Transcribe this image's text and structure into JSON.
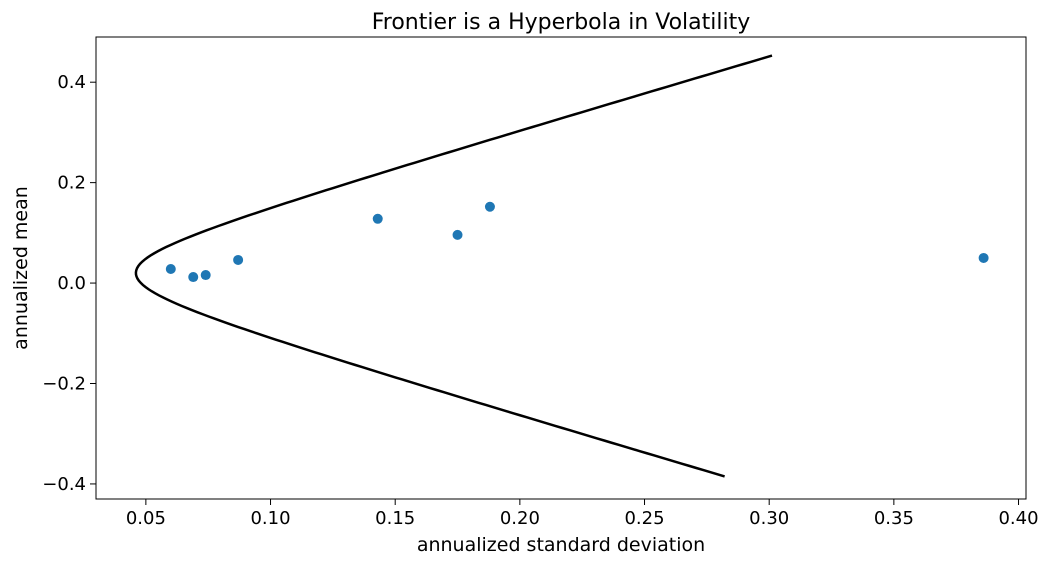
{
  "chart_data": {
    "type": "scatter",
    "title": "Frontier is a Hyperbola in Volatility",
    "xlabel": "annualized standard deviation",
    "ylabel": "annualized mean",
    "xlim": [
      0.03,
      0.403
    ],
    "ylim": [
      -0.43,
      0.49
    ],
    "xticks": [
      0.05,
      0.1,
      0.15,
      0.2,
      0.25,
      0.3,
      0.35,
      0.4
    ],
    "xtick_labels": [
      "0.05",
      "0.10",
      "0.15",
      "0.20",
      "0.25",
      "0.30",
      "0.35",
      "0.40"
    ],
    "yticks": [
      -0.4,
      -0.2,
      0.0,
      0.2,
      0.4
    ],
    "ytick_labels": [
      "−0.4",
      "−0.2",
      "0.0",
      "0.2",
      "0.4"
    ],
    "grid": false,
    "series": [
      {
        "kind": "line",
        "color": "#000000",
        "frontier": {
          "sigma_min": 0.046,
          "mu_min": 0.02,
          "slope": 1.455,
          "mu_range": [
            -0.385,
            0.453
          ]
        }
      },
      {
        "kind": "scatter",
        "color": "#1f77b4",
        "points": [
          {
            "x": 0.06,
            "y": 0.028
          },
          {
            "x": 0.069,
            "y": 0.012
          },
          {
            "x": 0.074,
            "y": 0.016
          },
          {
            "x": 0.087,
            "y": 0.046
          },
          {
            "x": 0.143,
            "y": 0.128
          },
          {
            "x": 0.175,
            "y": 0.096
          },
          {
            "x": 0.188,
            "y": 0.152
          },
          {
            "x": 0.386,
            "y": 0.05
          }
        ]
      }
    ]
  }
}
